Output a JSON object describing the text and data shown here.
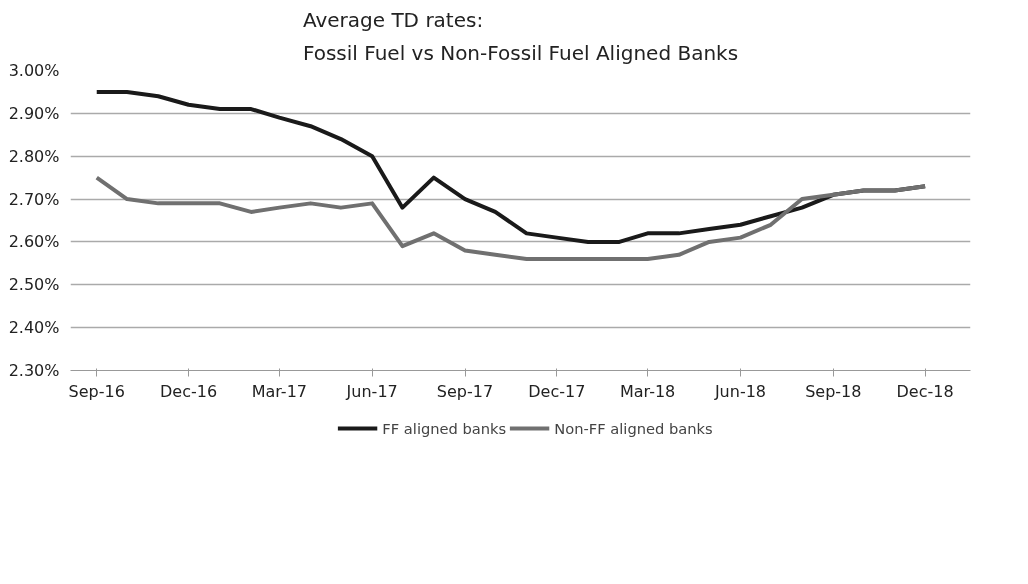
{
  "chart_data": {
    "type": "line",
    "title": "Average TD rates:\nFossil Fuel vs Non-Fossil Fuel Aligned Banks",
    "x": [
      "2016-09",
      "2016-10",
      "2016-11",
      "2016-12",
      "2017-01",
      "2017-02",
      "2017-03",
      "2017-04",
      "2017-05",
      "2017-06",
      "2017-07",
      "2017-08",
      "2017-09",
      "2017-10",
      "2017-11",
      "2017-12",
      "2018-01",
      "2018-02",
      "2018-03",
      "2018-04",
      "2018-05",
      "2018-06",
      "2018-07",
      "2018-08",
      "2018-09",
      "2018-10",
      "2018-11",
      "2018-12"
    ],
    "series": [
      {
        "name": "FF aligned banks",
        "color": "#1a1a1a",
        "values": [
          2.95,
          2.95,
          2.94,
          2.92,
          2.91,
          2.91,
          2.89,
          2.87,
          2.84,
          2.8,
          2.68,
          2.75,
          2.7,
          2.67,
          2.62,
          2.61,
          2.6,
          2.6,
          2.62,
          2.62,
          2.63,
          2.64,
          2.66,
          2.68,
          2.71,
          2.72,
          2.72,
          2.73
        ]
      },
      {
        "name": "Non-FF aligned banks",
        "color": "#707070",
        "values": [
          2.75,
          2.7,
          2.69,
          2.69,
          2.69,
          2.67,
          2.68,
          2.69,
          2.68,
          2.69,
          2.59,
          2.62,
          2.58,
          2.57,
          2.56,
          2.56,
          2.56,
          2.56,
          2.56,
          2.57,
          2.6,
          2.61,
          2.64,
          2.7,
          2.71,
          2.72,
          2.72,
          2.73
        ]
      }
    ],
    "xlim": [
      "2016-08-06",
      "2019-01-15"
    ],
    "xticks": [
      {
        "value": "2016-09",
        "label": "Sep-16"
      },
      {
        "value": "2016-12",
        "label": "Dec-16"
      },
      {
        "value": "2017-03",
        "label": "Mar-17"
      },
      {
        "value": "2017-06",
        "label": "Jun-17"
      },
      {
        "value": "2017-09",
        "label": "Sep-17"
      },
      {
        "value": "2017-12",
        "label": "Dec-17"
      },
      {
        "value": "2018-03",
        "label": "Mar-18"
      },
      {
        "value": "2018-06",
        "label": "Jun-18"
      },
      {
        "value": "2018-09",
        "label": "Sep-18"
      },
      {
        "value": "2018-12",
        "label": "Dec-18"
      }
    ],
    "ylim": [
      2.3,
      3.0
    ],
    "yticks": [
      {
        "value": 2.3,
        "label": "2.30%"
      },
      {
        "value": 2.4,
        "label": "2.40%"
      },
      {
        "value": 2.5,
        "label": "2.50%"
      },
      {
        "value": 2.6,
        "label": "2.60%"
      },
      {
        "value": 2.7,
        "label": "2.70%"
      },
      {
        "value": 2.8,
        "label": "2.80%"
      },
      {
        "value": 2.9,
        "label": "2.90%"
      },
      {
        "value": 3.0,
        "label": "3.00%"
      }
    ],
    "grid": "y",
    "legend": "bottom",
    "marker": "none",
    "line_style": "solid"
  }
}
